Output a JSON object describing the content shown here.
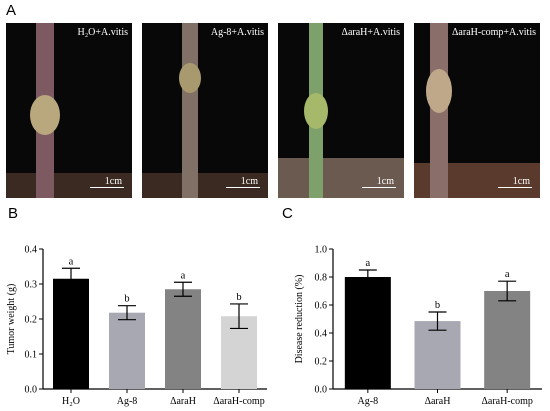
{
  "panel_labels": {
    "a": "A",
    "b": "B",
    "c": "C"
  },
  "photos": [
    {
      "label": "H₂O+A.vitis",
      "scale": "1cm",
      "stem_color": "#7d5a62"
    },
    {
      "label": "Ag-8+A.vitis",
      "scale": "1cm",
      "stem_color": "#807065"
    },
    {
      "label": "ΔaraH+A.vitis",
      "scale": "1cm",
      "stem_color": "#7ea06a"
    },
    {
      "label": "ΔaraH-comp+A.vitis",
      "scale": "1cm",
      "stem_color": "#8a6e6a"
    }
  ],
  "chart_data": [
    {
      "type": "bar",
      "categories": [
        "H₂O",
        "Ag-8",
        "ΔaraH",
        "ΔaraH-comp"
      ],
      "values": [
        0.315,
        0.218,
        0.285,
        0.208
      ],
      "errors": [
        0.03,
        0.02,
        0.02,
        0.035
      ],
      "significance": [
        "a",
        "b",
        "a",
        "b"
      ],
      "colors": [
        "#000000",
        "#a8a8b2",
        "#838383",
        "#d4d4d4"
      ],
      "ylabel": "Tumor weight (g)",
      "ylim": [
        0,
        0.4
      ],
      "yticks": [
        "0.0",
        "0.1",
        "0.2",
        "0.3",
        "0.4"
      ]
    },
    {
      "type": "bar",
      "categories": [
        "Ag-8",
        "ΔaraH",
        "ΔaraH-comp"
      ],
      "values": [
        0.8,
        0.485,
        0.7
      ],
      "errors": [
        0.05,
        0.065,
        0.07
      ],
      "significance": [
        "a",
        "b",
        "a"
      ],
      "colors": [
        "#000000",
        "#a8a8b2",
        "#838383"
      ],
      "ylabel": "Disease reduction (%)",
      "ylim": [
        0,
        1.0
      ],
      "yticks": [
        "0.0",
        "0.2",
        "0.4",
        "0.6",
        "0.8",
        "1.0"
      ]
    }
  ]
}
